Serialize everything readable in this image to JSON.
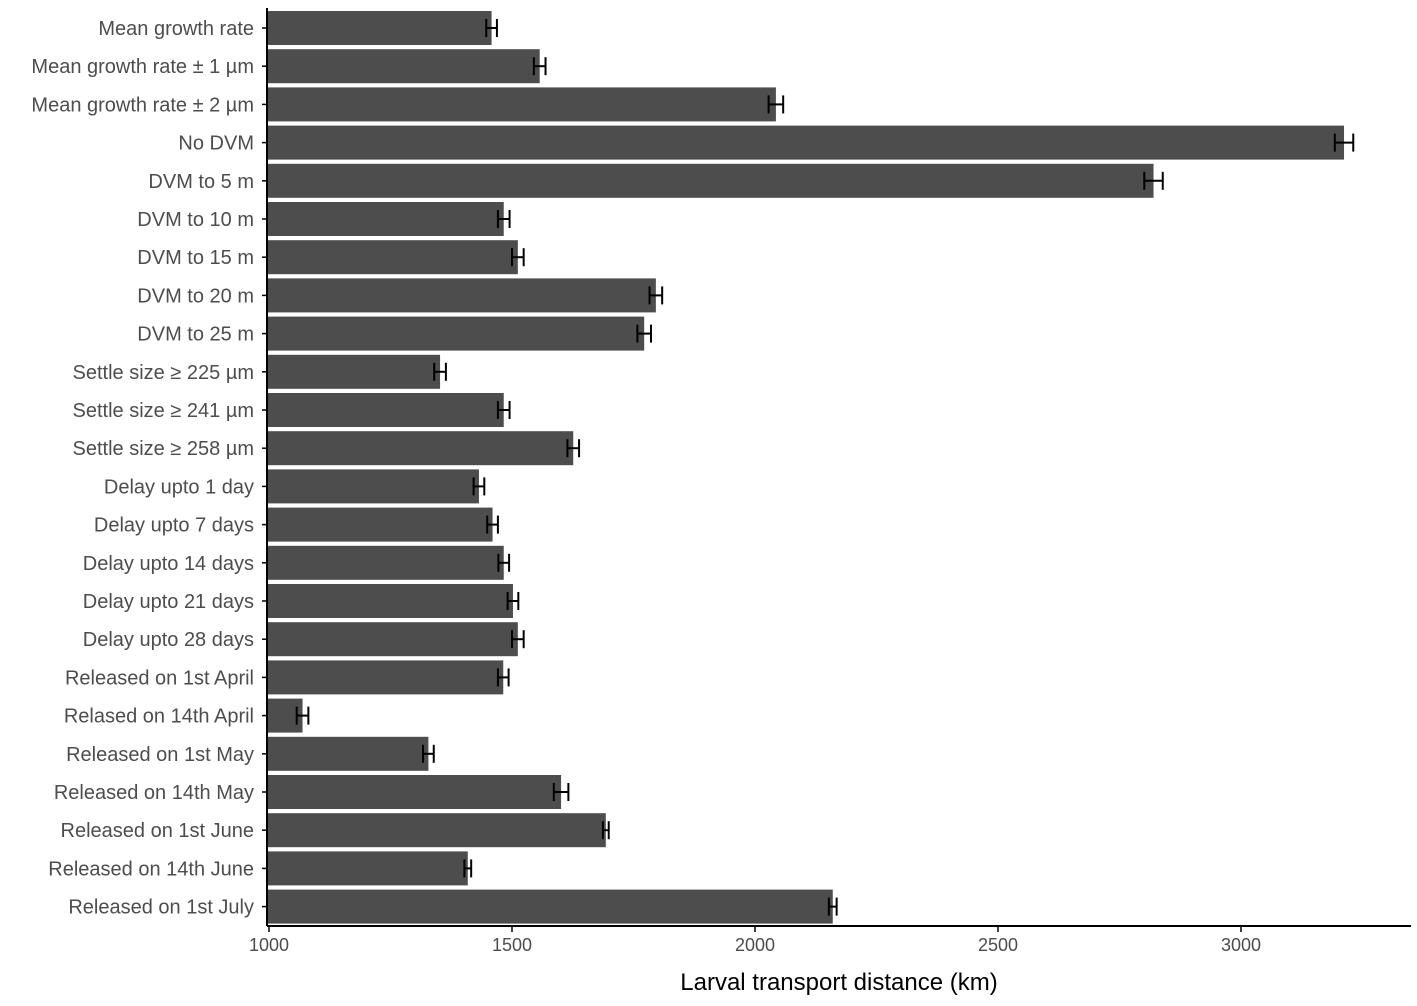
{
  "chart_data": {
    "type": "bar",
    "orientation": "horizontal",
    "title": "",
    "xlabel": "Larval transport distance (km)",
    "ylabel": "",
    "xlim": [
      1000,
      3350
    ],
    "x_ticks": [
      1000,
      1500,
      2000,
      2500,
      3000
    ],
    "x_tick_labels": [
      "1000",
      "1500",
      "2000",
      "2500",
      "3000"
    ],
    "grid": false,
    "legend": "none",
    "bar_color": "#4d4d4d",
    "error_bar_color": "#000000",
    "axis_color": "#000000",
    "label_color": "#4d4d4d",
    "categories": [
      "Mean growth rate",
      "Mean growth rate ± 1 µm",
      "Mean growth rate ± 2 µm",
      "No DVM",
      "DVM to 5 m",
      "DVM to 10 m",
      "DVM to 15 m",
      "DVM to 20 m",
      "DVM to 25 m",
      "Settle size ≥ 225 µm",
      "Settle size ≥ 241 µm",
      "Settle size ≥ 258 µm",
      "Delay upto 1 day",
      "Delay upto 7 days",
      "Delay upto 14 days",
      "Delay upto 21 days",
      "Delay upto 28 days",
      "Released on 1st April",
      "Relased on 14th April",
      "Released on 1st May",
      "Released on 14th May",
      "Released on 1st June",
      "Released on 14th June",
      "Released on 1st July"
    ],
    "values": [
      1458,
      1557,
      2043,
      3212,
      2820,
      1483,
      1512,
      1796,
      1772,
      1352,
      1483,
      1626,
      1432,
      1460,
      1483,
      1502,
      1512,
      1482,
      1069,
      1328,
      1601,
      1693,
      1409,
      2160
    ],
    "errors": [
      11,
      12,
      15,
      19,
      19,
      12,
      12,
      13,
      14,
      12,
      12,
      12,
      11,
      11,
      11,
      11,
      12,
      11,
      12,
      11,
      15,
      6,
      7,
      8
    ]
  }
}
